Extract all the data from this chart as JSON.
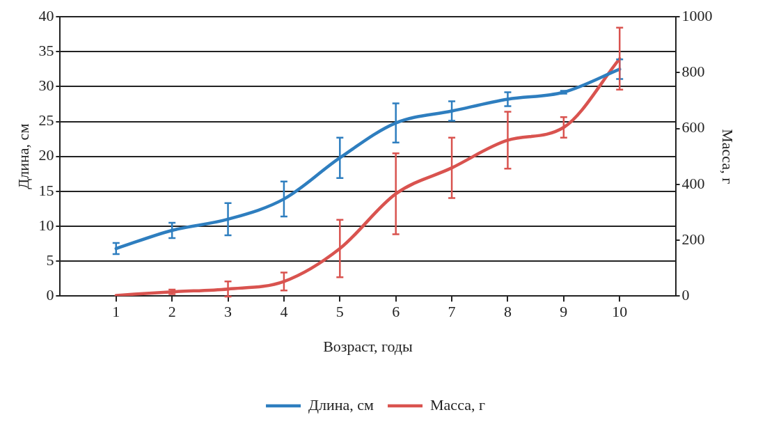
{
  "chart_data": {
    "type": "line",
    "xlabel": "Возраст, годы",
    "ylabel": "Длина, см",
    "y2label": "Масса, г",
    "x": [
      1,
      2,
      3,
      4,
      5,
      6,
      7,
      8,
      9,
      10
    ],
    "xlim": [
      0,
      11
    ],
    "xticks": [
      1,
      2,
      3,
      4,
      5,
      6,
      7,
      8,
      9,
      10
    ],
    "ylim": [
      0,
      40
    ],
    "yticks": [
      0,
      5,
      10,
      15,
      20,
      25,
      30,
      35,
      40
    ],
    "y2lim": [
      0,
      1000
    ],
    "y2ticks": [
      0,
      200,
      400,
      600,
      800,
      1000
    ],
    "series": [
      {
        "name": "Длина, см",
        "color": "#2e7ebf",
        "values": [
          6.8,
          9.4,
          11.0,
          13.9,
          19.8,
          24.8,
          26.5,
          28.2,
          29.2,
          32.5
        ],
        "errors": [
          0.8,
          1.1,
          2.3,
          2.5,
          2.9,
          2.8,
          1.4,
          1.0,
          0.2,
          1.4
        ]
      },
      {
        "name": "Масса, г",
        "color": "#d9534f",
        "axis": "y2",
        "values": [
          2,
          15,
          25,
          52,
          170,
          366,
          459,
          558,
          604,
          850
        ],
        "errors": [
          null,
          8,
          27,
          32,
          103,
          145,
          108,
          102,
          37,
          111
        ]
      }
    ],
    "grid": "y",
    "legend": "bottom",
    "marker": "none",
    "line_style": "solid"
  }
}
